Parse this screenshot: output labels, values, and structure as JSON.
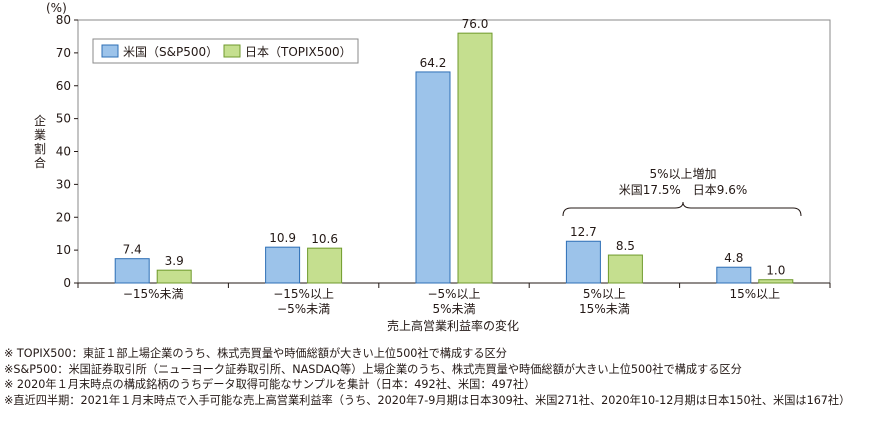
{
  "chart_data": {
    "type": "bar",
    "categories": [
      [
        "−15%未満"
      ],
      [
        "−15%以上",
        "−5%未満"
      ],
      [
        "−5%以上",
        "5%未満"
      ],
      [
        "5%以上",
        "15%未満"
      ],
      [
        "15%以上"
      ]
    ],
    "series": [
      {
        "name": "米国（S&P500）",
        "values": [
          7.4,
          10.9,
          64.2,
          12.7,
          4.8
        ],
        "color": "#9cc3ea",
        "stroke": "#2e6fb6"
      },
      {
        "name": "日本（TOPIX500）",
        "values": [
          3.9,
          10.6,
          76.0,
          8.5,
          1.0
        ],
        "color": "#c5df8f",
        "stroke": "#6f9a2c"
      }
    ],
    "xlabel": "売上高営業利益率の変化",
    "ylabel": "企業割合",
    "unit": "(%)",
    "ylim": [
      0,
      80
    ],
    "yticks": [
      0,
      10,
      20,
      30,
      40,
      50,
      60,
      70,
      80
    ],
    "grid": false,
    "legend": "top-left",
    "annotation": {
      "line1": "5%以上増加",
      "line2": "米国17.5%　日本9.6%"
    }
  },
  "notes": [
    "※ TOPIX500：東証１部上場企業のうち、株式売買量や時価総額が大きい上位500社で構成する区分",
    "※S&P500：米国証券取引所（ニューヨーク証券取引所、NASDAQ等）上場企業のうち、株式売買量や時価総額が大きい上位500社で構成する区分",
    "※ 2020年１月末時点の構成銘柄のうちデータ取得可能なサンプルを集計（日本：492社、米国：497社）",
    "※直近四半期：2021年１月末時点で入手可能な売上高営業利益率（うち、2020年7-9月期は日本309社、米国271社、2020年10-12月期は日本150社、米国は167社）"
  ]
}
